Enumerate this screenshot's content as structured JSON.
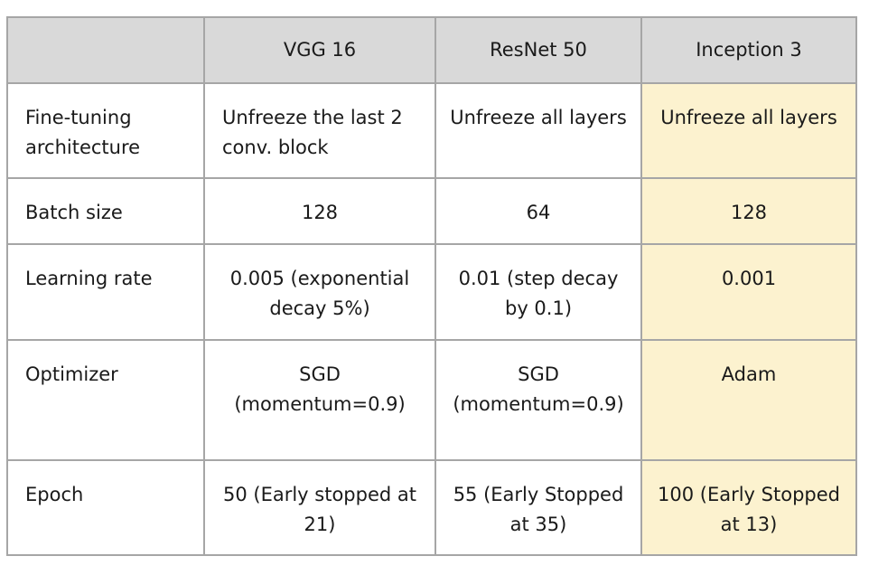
{
  "table": {
    "headers": [
      "",
      "VGG 16",
      "ResNet 50",
      "Inception 3"
    ],
    "rows": [
      {
        "label": "Fine-tuning architecture",
        "vgg16": "Unfreeze the last 2 conv. block",
        "resnet50": "Unfreeze all layers",
        "inception3": "Unfreeze all layers"
      },
      {
        "label": "Batch size",
        "vgg16": "128",
        "resnet50": "64",
        "inception3": "128"
      },
      {
        "label": "Learning rate",
        "vgg16": "0.005 (exponential decay 5%)",
        "resnet50": "0.01 (step decay by 0.1)",
        "inception3": "0.001"
      },
      {
        "label": "Optimizer",
        "vgg16": "SGD (momentum=0.9)",
        "resnet50": "SGD (momentum=0.9)",
        "inception3": "Adam"
      },
      {
        "label": "Epoch",
        "vgg16": "50 (Early stopped at 21)",
        "resnet50": "55 (Early Stopped at 35)",
        "inception3": "100 (Early Stopped at 13)"
      }
    ],
    "colors": {
      "header_bg": "#d9d9d9",
      "highlight_bg": "#fcf2cf",
      "border": "#a6a6a6"
    }
  }
}
